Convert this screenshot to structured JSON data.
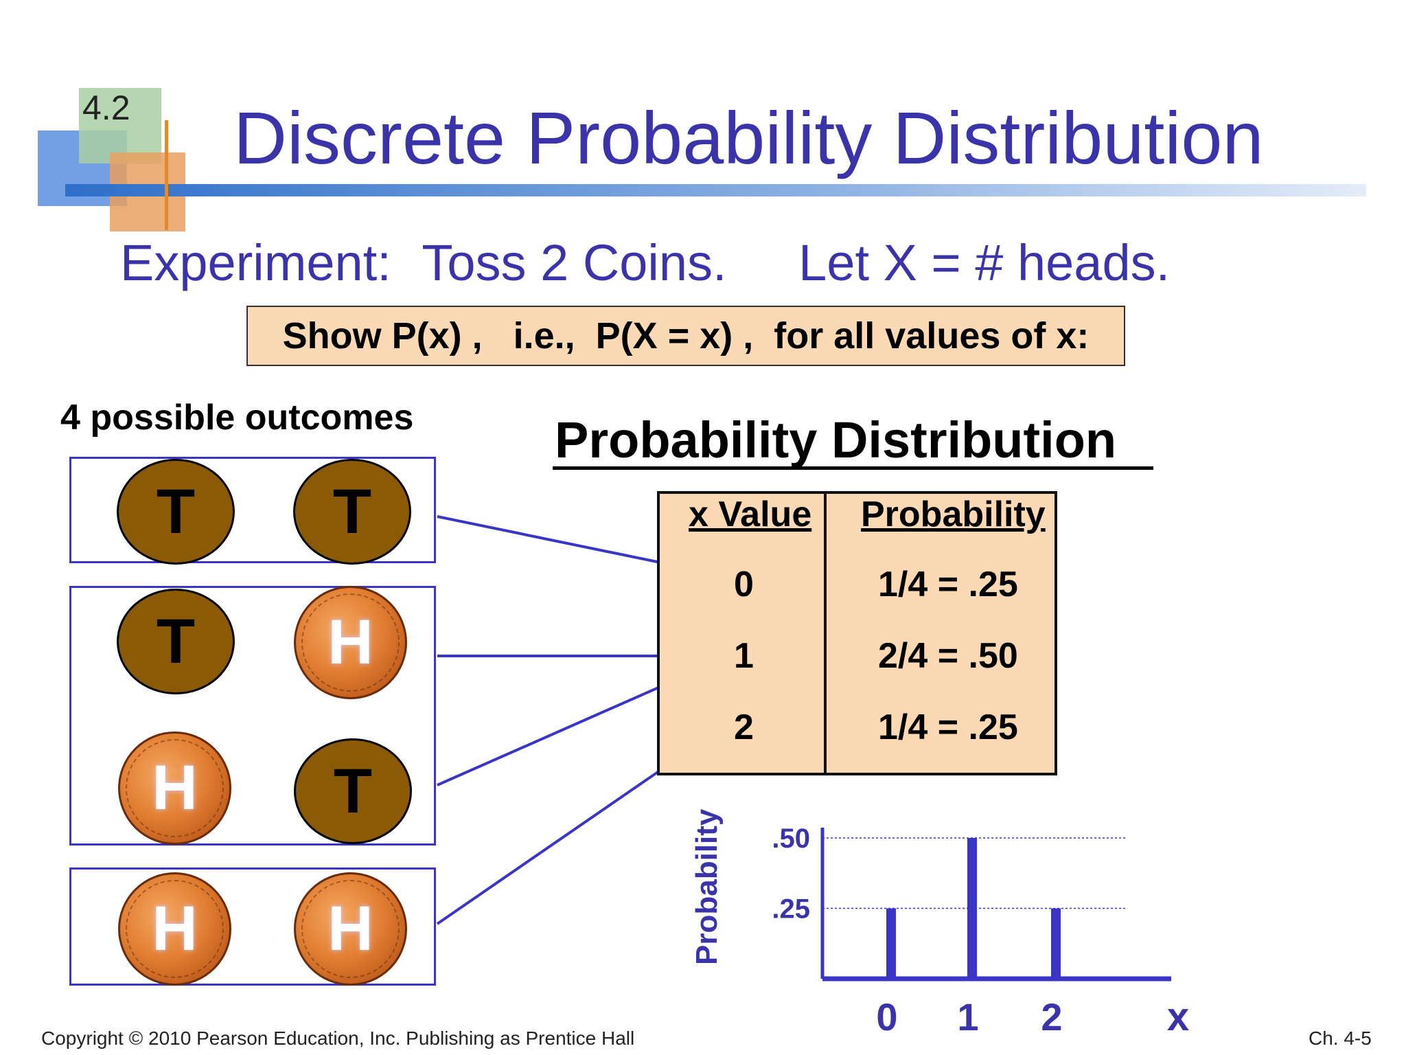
{
  "header": {
    "section_number": "4.2",
    "title": "Discrete Probability Distribution"
  },
  "experiment": {
    "label": "Experiment:",
    "toss": "Toss 2 Coins.",
    "let": "Let  X = # heads."
  },
  "instruction": "Show P(x) ,   i.e.,  P(X = x) ,  for all values of x:",
  "outcomes": {
    "label": "4 possible outcomes",
    "coins": [
      [
        "T",
        "T"
      ],
      [
        "T",
        "H"
      ],
      [
        "H",
        "T"
      ],
      [
        "H",
        "H"
      ]
    ]
  },
  "distribution": {
    "heading": "Probability Distribution",
    "columns": [
      "x Value",
      "Probability"
    ],
    "rows": [
      {
        "x": "0",
        "p": "1/4 = .25"
      },
      {
        "x": "1",
        "p": "2/4 = .50"
      },
      {
        "x": "2",
        "p": "1/4 = .25"
      }
    ]
  },
  "chart_data": {
    "type": "bar",
    "categories": [
      "0",
      "1",
      "2"
    ],
    "values": [
      0.25,
      0.5,
      0.25
    ],
    "xlabel": "x",
    "ylabel": "Probability",
    "yticks": [
      ".25",
      ".50"
    ],
    "ytick_values": [
      0.25,
      0.5
    ],
    "ylim": [
      0,
      0.5
    ],
    "grid": "dotted at tick values",
    "bar_color": "#3a35c6"
  },
  "footer": {
    "copyright": "Copyright © 2010 Pearson Education, Inc. Publishing as Prentice Hall",
    "slide": "Ch. 4-5"
  },
  "colors": {
    "title": "#3b33a9",
    "accent_box": "#fbd9b4",
    "outline": "#3a35c6",
    "tail_coin": "#8b5a06",
    "penny": "#e27f33"
  }
}
